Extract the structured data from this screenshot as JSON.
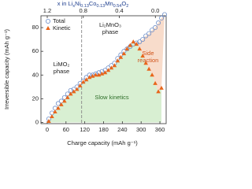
{
  "chart_data": {
    "type": "scatter",
    "x2label": [
      "x in Li",
      "x",
      "Ni",
      "0.13",
      "Co",
      "0.13",
      "Mn",
      "0.54",
      "O",
      "2"
    ],
    "xlabel": "Charge capacity (mAh g⁻¹)",
    "ylabel": "Irreversible capacity (mAh g⁻¹)",
    "xlim": [
      -20,
      380
    ],
    "xticks": [
      0,
      60,
      120,
      180,
      240,
      300,
      360
    ],
    "x2lim": [
      1.27,
      -0.12
    ],
    "x2ticks": [
      1.2,
      0.8,
      0.4,
      {
        "value": 0,
        "label": "0.0"
      }
    ],
    "ylim": [
      -1,
      90
    ],
    "yticks": [
      0,
      20,
      40,
      60,
      80
    ],
    "vline_x": 110,
    "annotations": {
      "left_phase": [
        "LiMO₂",
        "phase"
      ],
      "right_phase": [
        "Li₂MnO₃",
        "phase"
      ],
      "side": [
        "Side",
        "reaction"
      ],
      "slow": "Slow kinetics"
    },
    "legend": "upper left",
    "series": [
      {
        "name": "Total",
        "color": "#6f8fc9",
        "marker": "circle",
        "x": [
          5,
          15,
          25,
          35,
          45,
          55,
          65,
          75,
          85,
          95,
          105,
          115,
          125,
          135,
          145,
          155,
          165,
          175,
          185,
          195,
          205,
          215,
          225,
          235,
          245,
          255,
          265,
          275,
          285,
          295,
          305,
          315,
          325,
          335,
          345,
          355,
          365,
          375
        ],
        "values": [
          3,
          8,
          12,
          16,
          18,
          21,
          24,
          27,
          28,
          30,
          33,
          35,
          38,
          40,
          40,
          41,
          42,
          43,
          44,
          46,
          48,
          50,
          54,
          57,
          60,
          62,
          64,
          66,
          67,
          68,
          70,
          73,
          75,
          78,
          80,
          84,
          88,
          91
        ]
      },
      {
        "name": "Kinetic",
        "color": "#e8651a",
        "marker": "triangle",
        "x": [
          5,
          15,
          25,
          35,
          45,
          55,
          65,
          75,
          85,
          95,
          105,
          115,
          125,
          135,
          145,
          155,
          165,
          175,
          185,
          195,
          205,
          215,
          225,
          235,
          245,
          255,
          265,
          275,
          285,
          295,
          305,
          315,
          325,
          335,
          345,
          355,
          365
        ],
        "values": [
          1,
          5,
          9,
          12,
          15,
          18,
          21,
          24,
          26,
          28,
          31,
          34,
          36,
          38,
          39,
          40,
          40,
          41,
          42,
          44,
          46,
          48,
          52,
          55,
          58,
          62,
          65,
          68,
          66,
          62,
          56,
          50,
          45,
          40,
          33,
          26,
          29
        ]
      }
    ]
  }
}
